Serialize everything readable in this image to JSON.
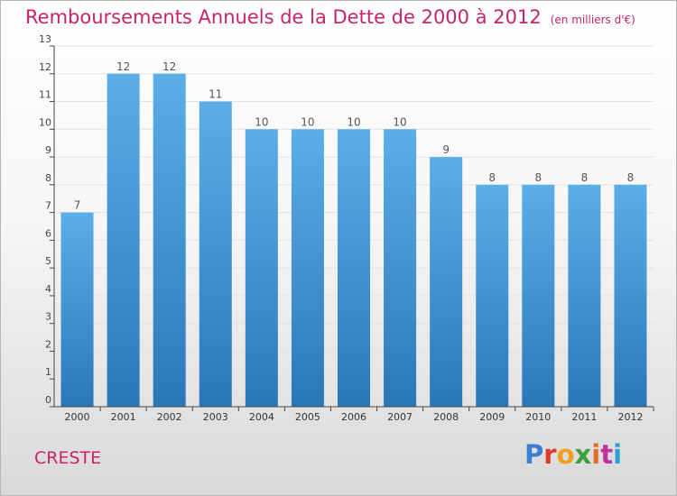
{
  "title": "Remboursements Annuels de la Dette de 2000 à 2012",
  "unit_note": "(en milliers d'€)",
  "commune": "CRESTE",
  "logo_text": "Proxiti",
  "colors": {
    "title": "#c8236c",
    "bar_top": "#5baee8",
    "bar_bottom": "#2a77b8",
    "axis": "#444444",
    "grid": "#e2e2e2"
  },
  "chart_data": {
    "type": "bar",
    "title": "Remboursements Annuels de la Dette de 2000 à 2012",
    "subtitle": "(en milliers d'€)",
    "categories": [
      "2000",
      "2001",
      "2002",
      "2003",
      "2004",
      "2005",
      "2006",
      "2007",
      "2008",
      "2009",
      "2010",
      "2011",
      "2012"
    ],
    "values": [
      7,
      12,
      12,
      11,
      10,
      10,
      10,
      10,
      9,
      8,
      8,
      8,
      8
    ],
    "ylim": [
      0,
      13
    ],
    "yticks": [
      0,
      1,
      2,
      3,
      4,
      5,
      6,
      7,
      8,
      9,
      10,
      11,
      12,
      13
    ],
    "xlabel": "",
    "ylabel": "",
    "grid": true,
    "data_labels": true
  }
}
